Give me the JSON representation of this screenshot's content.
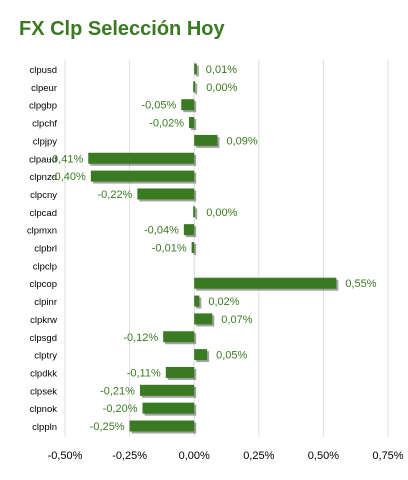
{
  "chart_data": {
    "type": "bar",
    "orientation": "horizontal",
    "title": "FX Clp Selección Hoy",
    "xlabel": "",
    "ylabel": "",
    "categories": [
      "clpusd",
      "clpeur",
      "clpgbp",
      "clpchf",
      "clpjpy",
      "clpaud",
      "clpnzd",
      "clpcny",
      "clpcad",
      "clpmxn",
      "clpbrl",
      "clpclp",
      "clpcop",
      "clpinr",
      "clpkrw",
      "clpsgd",
      "clptry",
      "clpdkk",
      "clpsek",
      "clpnok",
      "clppln"
    ],
    "values": [
      0.01,
      0.0,
      -0.05,
      -0.02,
      0.09,
      -0.41,
      -0.4,
      -0.22,
      0.0,
      -0.04,
      -0.01,
      null,
      0.55,
      0.02,
      0.07,
      -0.12,
      0.05,
      -0.11,
      -0.21,
      -0.2,
      -0.25
    ],
    "data_labels": [
      "0,01%",
      "0,00%",
      "-0,05%",
      "-0,02%",
      "0,09%",
      "-0,41%",
      "-0,40%",
      "-0,22%",
      "0,00%",
      "-0,04%",
      "-0,01%",
      "",
      "0,55%",
      "0,02%",
      "0,07%",
      "-0,12%",
      "0,05%",
      "-0,11%",
      "-0,21%",
      "-0,20%",
      "-0,25%"
    ],
    "xlim": [
      -0.5,
      0.75
    ],
    "xticks": [
      -0.5,
      -0.25,
      0,
      0.25,
      0.5,
      0.75
    ],
    "xtick_labels": [
      "-0,50%",
      "-0,25%",
      "0,00%",
      "0,25%",
      "0,50%",
      "0,75%"
    ],
    "grid": true,
    "legend": "none",
    "colors": {
      "bar": "#3a7a22",
      "bar_shadow": "#555555",
      "title": "#3a7a22",
      "data_label": "#3a7a22",
      "category_label": "#000000",
      "tick_label": "#000000",
      "grid": "#dddddd"
    }
  }
}
